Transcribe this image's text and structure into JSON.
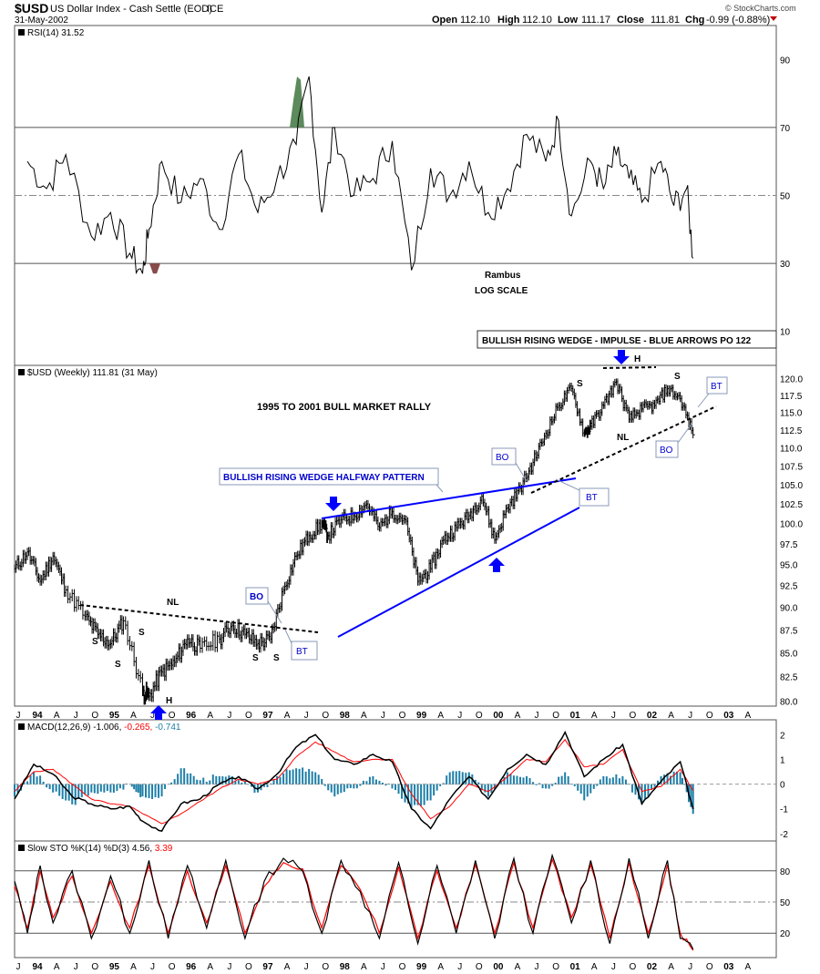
{
  "header": {
    "symbol": "$USD",
    "name": "US Dollar Index - Cash Settle (EOD)",
    "exchange": "ICE",
    "date": "31-May-2002",
    "open_label": "Open",
    "open": "112.10",
    "high_label": "High",
    "high": "112.10",
    "low_label": "Low",
    "low": "111.17",
    "close_label": "Close",
    "close": "111.81",
    "chg_label": "Chg",
    "chg": "-0.99 (-0.88%)",
    "copyright": "© StockCharts.com"
  },
  "colors": {
    "price": "#000000",
    "trendline": "#0000ff",
    "macd_signal": "#ff0000",
    "histogram": "#1e7fa8",
    "rsi_overbought_fill": "#5c8a5c",
    "rsi_oversold_fill": "#8a4a4a",
    "annotation_border": "#8a9ab8"
  },
  "chart_data": [
    {
      "type": "line",
      "panel": "rsi",
      "legend": "RSI(14) 31.52",
      "y_ticks": [
        90,
        70,
        50,
        30,
        10
      ],
      "ylim": [
        0,
        100
      ],
      "reference_lines": [
        70,
        50,
        30
      ],
      "annotations": [
        "Rambus",
        "LOG SCALE"
      ],
      "x": [
        "1993-09",
        "1993-12",
        "1994-03",
        "1994-07",
        "1994-10",
        "1995-01",
        "1995-03",
        "1995-04",
        "1995-06",
        "1995-09",
        "1995-12",
        "1996-03",
        "1996-06",
        "1996-09",
        "1996-12",
        "1997-03",
        "1997-05",
        "1997-07",
        "1997-09",
        "1997-12",
        "1998-03",
        "1998-06",
        "1998-09",
        "1998-12",
        "1999-03",
        "1999-06",
        "1999-09",
        "1999-12",
        "2000-03",
        "2000-06",
        "2000-08",
        "2000-10",
        "2001-01",
        "2001-03",
        "2001-05",
        "2001-07",
        "2001-09",
        "2001-12",
        "2002-02",
        "2002-04",
        "2002-05"
      ],
      "values": [
        60,
        52,
        62,
        38,
        45,
        33,
        27,
        40,
        60,
        48,
        55,
        40,
        62,
        45,
        55,
        65,
        85,
        45,
        70,
        50,
        55,
        66,
        28,
        58,
        50,
        60,
        45,
        52,
        68,
        60,
        72,
        44,
        60,
        52,
        62,
        55,
        48,
        60,
        47,
        52,
        31.52
      ]
    },
    {
      "type": "line",
      "panel": "price",
      "legend": "$USD (Weekly) 111.81 (31 May)",
      "title": "1995 TO 2001 BULL MARKET RALLY",
      "scale": "log",
      "y_ticks": [
        80.0,
        82.5,
        85.0,
        87.5,
        90.0,
        92.5,
        95.0,
        97.5,
        100.0,
        102.5,
        105.0,
        107.5,
        110.0,
        112.5,
        115.0,
        117.5,
        120.0
      ],
      "ylim": [
        79.5,
        122
      ],
      "x_tick_labels": [
        "J",
        "94",
        "A",
        "J",
        "O",
        "95",
        "A",
        "J",
        "O",
        "96",
        "A",
        "J",
        "O",
        "97",
        "A",
        "J",
        "O",
        "98",
        "A",
        "J",
        "O",
        "99",
        "A",
        "J",
        "O",
        "00",
        "A",
        "J",
        "O",
        "01",
        "A",
        "J",
        "O",
        "02",
        "A",
        "J",
        "O",
        "03",
        "A"
      ],
      "x": [
        "1993-07",
        "1993-09",
        "1993-11",
        "1994-01",
        "1994-03",
        "1994-06",
        "1994-08",
        "1994-10",
        "1994-12",
        "1995-03",
        "1995-04",
        "1995-06",
        "1995-08",
        "1995-10",
        "1995-12",
        "1996-03",
        "1996-05",
        "1996-07",
        "1996-09",
        "1996-11",
        "1997-01",
        "1997-03",
        "1997-05",
        "1997-07",
        "1997-08",
        "1997-10",
        "1997-12",
        "1998-02",
        "1998-04",
        "1998-06",
        "1998-08",
        "1998-10",
        "1998-12",
        "1999-02",
        "1999-04",
        "1999-06",
        "1999-08",
        "1999-10",
        "1999-12",
        "2000-02",
        "2000-04",
        "2000-06",
        "2000-08",
        "2000-10",
        "2000-12",
        "2001-01",
        "2001-03",
        "2001-05",
        "2001-07",
        "2001-09",
        "2001-11",
        "2002-01",
        "2002-03",
        "2002-05"
      ],
      "values": [
        94.5,
        96.5,
        93.0,
        96.0,
        92.0,
        89.0,
        87.0,
        86.0,
        88.5,
        81.0,
        80.5,
        83.0,
        84.0,
        86.5,
        85.5,
        86.5,
        88.0,
        87.0,
        86.0,
        86.5,
        92.0,
        96.0,
        98.5,
        100.0,
        98.5,
        100.5,
        101.0,
        102.5,
        99.5,
        101.5,
        100.5,
        93.0,
        94.5,
        98.0,
        99.5,
        101.0,
        103.5,
        98.0,
        102.0,
        104.5,
        108.0,
        112.0,
        116.0,
        118.5,
        112.0,
        113.0,
        116.0,
        119.5,
        114.0,
        115.5,
        116.0,
        118.5,
        117.0,
        111.81
      ],
      "annotations": [
        "BULLISH RISING WEDGE -  IMPULSE -  BLUE ARROWS PO 122",
        "BULLISH RISING WEDGE HALFWAY PATTERN",
        "NL",
        "NL",
        "S",
        "S",
        "S",
        "S",
        "S",
        "S",
        "S",
        "H",
        "H",
        "BO",
        "BT",
        "BO",
        "BT",
        "BO",
        "BT"
      ]
    },
    {
      "type": "line",
      "panel": "macd",
      "legend_prefix": "MACD(12,26,9)",
      "legend_macd": "-1.006,",
      "legend_signal": "-0.265,",
      "legend_hist": "-0.741",
      "y_ticks": [
        2,
        1,
        0,
        -1,
        -2
      ],
      "ylim": [
        -2.3,
        2.6
      ],
      "x": [
        "1993-07",
        "1993-10",
        "1994-01",
        "1994-04",
        "1994-07",
        "1994-10",
        "1995-01",
        "1995-03",
        "1995-06",
        "1995-09",
        "1995-12",
        "1996-03",
        "1996-06",
        "1996-09",
        "1996-12",
        "1997-03",
        "1997-06",
        "1997-09",
        "1997-12",
        "1998-03",
        "1998-06",
        "1998-09",
        "1998-12",
        "1999-03",
        "1999-06",
        "1999-09",
        "1999-12",
        "2000-03",
        "2000-06",
        "2000-09",
        "2000-12",
        "2001-03",
        "2001-06",
        "2001-09",
        "2001-12",
        "2002-03",
        "2002-05"
      ],
      "series": [
        {
          "name": "MACD",
          "values": [
            -0.6,
            0.8,
            0.4,
            -0.5,
            -0.8,
            -1.0,
            -0.9,
            -1.5,
            -1.9,
            -0.8,
            -0.6,
            0.0,
            0.3,
            -0.2,
            0.4,
            1.5,
            2.0,
            1.0,
            0.8,
            1.2,
            0.9,
            -1.0,
            -1.8,
            -0.6,
            0.3,
            -0.6,
            0.6,
            1.2,
            0.8,
            2.1,
            0.3,
            1.0,
            1.6,
            -0.8,
            0.1,
            0.9,
            -1.006
          ]
        },
        {
          "name": "Signal",
          "values": [
            -0.3,
            0.5,
            0.6,
            0.0,
            -0.6,
            -0.8,
            -0.9,
            -1.2,
            -1.6,
            -1.2,
            -0.7,
            -0.2,
            0.2,
            0.0,
            0.2,
            1.1,
            1.7,
            1.3,
            0.9,
            1.0,
            1.0,
            -0.4,
            -1.4,
            -0.9,
            0.0,
            -0.3,
            0.3,
            1.0,
            0.9,
            1.8,
            0.7,
            0.8,
            1.4,
            -0.3,
            -0.1,
            0.6,
            -0.265
          ]
        }
      ]
    },
    {
      "type": "line",
      "panel": "stochastic",
      "legend_prefix": "Slow STO %K(14) %D(3)",
      "legend_k": "4.56,",
      "legend_d": "3.39",
      "y_ticks": [
        80,
        50,
        20
      ],
      "ylim": [
        0,
        100
      ],
      "reference_lines": [
        80,
        50,
        20
      ],
      "x": [
        "1993-07",
        "1993-09",
        "1993-11",
        "1994-01",
        "1994-04",
        "1994-07",
        "1994-10",
        "1995-01",
        "1995-04",
        "1995-07",
        "1995-10",
        "1996-01",
        "1996-04",
        "1996-07",
        "1996-10",
        "1997-01",
        "1997-04",
        "1997-07",
        "1997-10",
        "1998-01",
        "1998-04",
        "1998-07",
        "1998-10",
        "1999-01",
        "1999-04",
        "1999-07",
        "1999-10",
        "2000-01",
        "2000-04",
        "2000-07",
        "2000-10",
        "2001-01",
        "2001-04",
        "2001-07",
        "2001-10",
        "2002-01",
        "2002-03",
        "2002-05"
      ],
      "series": [
        {
          "name": "%K",
          "values": [
            70,
            20,
            85,
            30,
            80,
            15,
            75,
            20,
            90,
            15,
            85,
            25,
            90,
            15,
            70,
            92,
            80,
            20,
            90,
            60,
            15,
            88,
            10,
            85,
            20,
            90,
            15,
            92,
            20,
            95,
            30,
            90,
            10,
            92,
            15,
            90,
            15,
            4.56
          ]
        },
        {
          "name": "%D",
          "values": [
            65,
            25,
            80,
            35,
            75,
            20,
            70,
            25,
            85,
            20,
            80,
            30,
            85,
            20,
            65,
            88,
            82,
            25,
            85,
            62,
            20,
            84,
            15,
            80,
            25,
            86,
            20,
            88,
            25,
            91,
            35,
            86,
            15,
            88,
            20,
            86,
            20,
            3.39
          ]
        }
      ]
    }
  ]
}
